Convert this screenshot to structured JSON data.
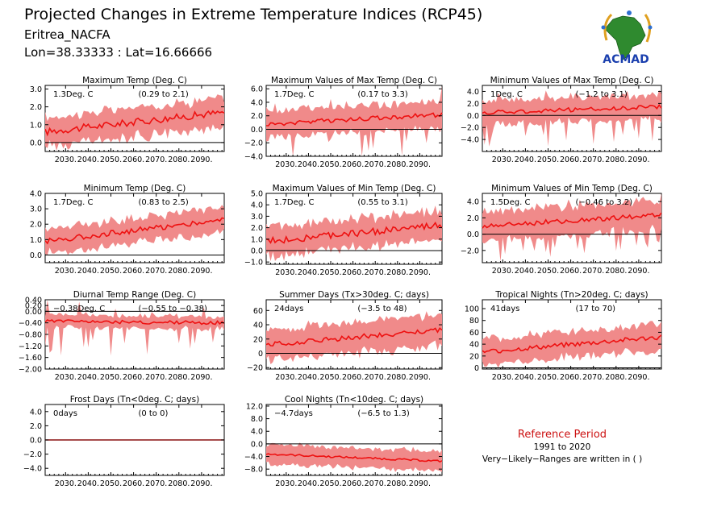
{
  "header": {
    "title": "Projected Changes in Extreme Temperature Indices (RCP45)",
    "region": "Eritrea_NACFA",
    "location": "Lon=38.33333 : Lat=16.66666"
  },
  "logo": {
    "text": "ACMAD",
    "icon": "africa-map-logo-icon"
  },
  "reference": {
    "title": "Reference Period",
    "years": "1991 to 2020",
    "note": "Very−Likely−Ranges are written in ( )"
  },
  "colors": {
    "band": "#f08a8a",
    "line": "#ee1111",
    "zero": "#000000"
  },
  "chart_data": [
    {
      "type": "line",
      "title": "Maximum Temp (Deg. C)",
      "summary": "1.3Deg. C",
      "range": "(0.29 to 2.1)",
      "x_start": 2021,
      "x_end": 2100,
      "xticks": [
        2030,
        2040,
        2050,
        2060,
        2070,
        2080,
        2090
      ],
      "ylim": [
        -0.5,
        3.2
      ],
      "yticks": [
        -0.0,
        1.0,
        2.0,
        3.0
      ],
      "ytick_labels": [
        "0.0",
        "1.0",
        "2.0",
        "3.0"
      ],
      "hline": 0.0,
      "mean_start": 0.6,
      "mean_end": 1.7,
      "spread": 0.8,
      "noise": 0.2,
      "spikes": 0.0
    },
    {
      "type": "line",
      "title": "Maximum Values of Max Temp (Deg. C)",
      "summary": "1.7Deg. C",
      "range": "(0.17 to 3.3)",
      "x_start": 2021,
      "x_end": 2100,
      "xticks": [
        2030,
        2040,
        2050,
        2060,
        2070,
        2080,
        2090
      ],
      "ylim": [
        -4.0,
        6.5
      ],
      "yticks": [
        -4.0,
        -2.0,
        0.0,
        2.0,
        4.0,
        6.0
      ],
      "ytick_labels": [
        "−4.0",
        "−2.0",
        "0.0",
        "2.0",
        "4.0",
        "6.0"
      ],
      "hline": 0.0,
      "mean_start": 0.8,
      "mean_end": 2.2,
      "spread": 2.0,
      "noise": 0.35,
      "spikes": 3.5
    },
    {
      "type": "line",
      "title": "Minimum Values of Max Temp (Deg. C)",
      "summary": "1Deg. C",
      "range": "(−1.2 to 3.1)",
      "x_start": 2021,
      "x_end": 2100,
      "xticks": [
        2030,
        2040,
        2050,
        2060,
        2070,
        2080,
        2090
      ],
      "ylim": [
        -6.0,
        5.0
      ],
      "yticks": [
        -4.0,
        -2.0,
        0.0,
        2.0,
        4.0
      ],
      "ytick_labels": [
        "−4.0",
        "−2.0",
        "0.0",
        "2.0",
        "4.0"
      ],
      "hline": 0.0,
      "mean_start": 0.5,
      "mean_end": 1.4,
      "spread": 2.0,
      "noise": 0.35,
      "spikes": 4.0
    },
    {
      "type": "line",
      "title": "Minimum Temp (Deg. C)",
      "summary": "1.7Deg. C",
      "range": "(0.83 to 2.5)",
      "x_start": 2021,
      "x_end": 2100,
      "xticks": [
        2030,
        2040,
        2050,
        2060,
        2070,
        2080,
        2090
      ],
      "ylim": [
        -0.5,
        4.0
      ],
      "yticks": [
        0.0,
        1.0,
        2.0,
        3.0,
        4.0
      ],
      "ytick_labels": [
        "0.0",
        "1.0",
        "2.0",
        "3.0",
        "4.0"
      ],
      "hline": 0.0,
      "mean_start": 0.9,
      "mean_end": 2.3,
      "spread": 0.8,
      "noise": 0.18,
      "spikes": 0.0
    },
    {
      "type": "line",
      "title": "Maximum Values of Min Temp (Deg. C)",
      "summary": "1.7Deg. C",
      "range": "(0.55 to 3.1)",
      "x_start": 2021,
      "x_end": 2100,
      "xticks": [
        2030,
        2040,
        2050,
        2060,
        2070,
        2080,
        2090
      ],
      "ylim": [
        -1.2,
        5.0
      ],
      "yticks": [
        -1.0,
        0.0,
        1.0,
        2.0,
        3.0,
        4.0,
        5.0
      ],
      "ytick_labels": [
        "−1.0",
        "0.0",
        "1.0",
        "2.0",
        "3.0",
        "4.0",
        "5.0"
      ],
      "hline": 0.0,
      "mean_start": 0.8,
      "mean_end": 2.2,
      "spread": 1.3,
      "noise": 0.3,
      "spikes": 0.0
    },
    {
      "type": "line",
      "title": "Minimum Values of Min Temp (Deg. C)",
      "summary": "1.5Deg. C",
      "range": "(−0.46 to 3.2)",
      "x_start": 2021,
      "x_end": 2100,
      "xticks": [
        2030,
        2040,
        2050,
        2060,
        2070,
        2080,
        2090
      ],
      "ylim": [
        -3.5,
        5.0
      ],
      "yticks": [
        -2.0,
        0.0,
        2.0,
        4.0
      ],
      "ytick_labels": [
        "−2.0",
        "0.0",
        "2.0",
        "4.0"
      ],
      "hline": 0.0,
      "mean_start": 1.0,
      "mean_end": 2.3,
      "spread": 1.8,
      "noise": 0.3,
      "spikes": 2.5
    },
    {
      "type": "line",
      "title": "Diurnal Temp Range (Deg. C)",
      "summary": "−0.38Deg. C",
      "range": "(−0.55 to −0.38)",
      "x_start": 2021,
      "x_end": 2100,
      "xticks": [
        2030,
        2040,
        2050,
        2060,
        2070,
        2080,
        2090
      ],
      "ylim": [
        -2.0,
        0.4
      ],
      "yticks": [
        -2.0,
        -1.6,
        -1.2,
        -0.8,
        -0.4,
        0.0,
        0.2,
        0.4
      ],
      "ytick_labels": [
        "−2.00",
        "−1.60",
        "−1.20",
        "−0.80",
        "−0.40",
        "0.00",
        "0.20",
        "0.40"
      ],
      "hline": 0.0,
      "mean_start": -0.35,
      "mean_end": -0.4,
      "spread": 0.22,
      "noise": 0.06,
      "spikes": 1.0
    },
    {
      "type": "line",
      "title": "Summer Days (Tx>30deg. C; days)",
      "summary": "24days",
      "range": "(−3.5 to 48)",
      "x_start": 2021,
      "x_end": 2100,
      "xticks": [
        2030,
        2040,
        2050,
        2060,
        2070,
        2080,
        2090
      ],
      "ylim": [
        -22.0,
        75.0
      ],
      "yticks": [
        -20.0,
        0.0,
        20.0,
        40.0,
        60.0
      ],
      "ytick_labels": [
        "−20",
        "0",
        "20",
        "40",
        "60"
      ],
      "hline": 0.0,
      "mean_start": 12.0,
      "mean_end": 33.0,
      "spread": 22.0,
      "noise": 3.5,
      "spikes": 0.0
    },
    {
      "type": "line",
      "title": "Tropical Nights (Tn>20deg. C; days)",
      "summary": "41days",
      "range": "(17 to 70)",
      "x_start": 2021,
      "x_end": 2100,
      "xticks": [
        2030,
        2040,
        2050,
        2060,
        2070,
        2080,
        2090
      ],
      "ylim": [
        -2.0,
        115.0
      ],
      "yticks": [
        0.0,
        20.0,
        40.0,
        60.0,
        80.0,
        100.0
      ],
      "ytick_labels": [
        "0",
        "20",
        "40",
        "60",
        "80",
        "100"
      ],
      "hline": 0.0,
      "mean_start": 27.0,
      "mean_end": 52.0,
      "spread": 22.0,
      "noise": 4.0,
      "spikes": 0.0
    },
    {
      "type": "line",
      "title": "Frost Days (Tn<0deg. C; days)",
      "summary": "0days",
      "range": "(0 to 0)",
      "x_start": 2021,
      "x_end": 2100,
      "xticks": [
        2030,
        2040,
        2050,
        2060,
        2070,
        2080,
        2090
      ],
      "ylim": [
        -5.0,
        5.0
      ],
      "yticks": [
        -4.0,
        -2.0,
        0.0,
        2.0,
        4.0
      ],
      "ytick_labels": [
        "−4.0",
        "−2.0",
        "0.0",
        "2.0",
        "4.0"
      ],
      "hline": 0.0,
      "mean_start": 0.0,
      "mean_end": 0.0,
      "spread": 0.0,
      "noise": 0.0,
      "spikes": 0.0
    },
    {
      "type": "line",
      "title": "Cool Nights (Tn<10deg. C; days)",
      "summary": "−4.7days",
      "range": "(−6.5 to 1.3)",
      "x_start": 2021,
      "x_end": 2100,
      "xticks": [
        2030,
        2040,
        2050,
        2060,
        2070,
        2080,
        2090
      ],
      "ylim": [
        -10.0,
        12.5
      ],
      "yticks": [
        -8.0,
        -4.0,
        0.0,
        4.0,
        8.0,
        12.0
      ],
      "ytick_labels": [
        "−8.0",
        "−4.0",
        "0.0",
        "4.0",
        "8.0",
        "12.0"
      ],
      "hline": 0.0,
      "mean_start": -3.2,
      "mean_end": -5.5,
      "spread": 3.2,
      "noise": 0.3,
      "spikes": 0.0
    }
  ]
}
